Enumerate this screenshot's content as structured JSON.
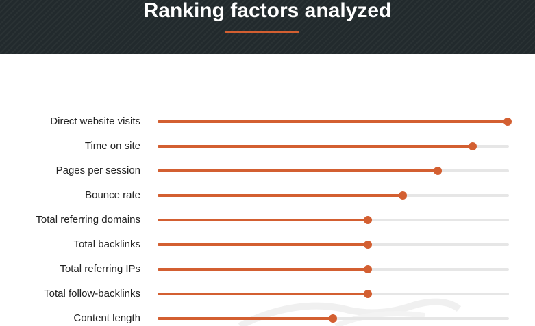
{
  "header": {
    "title": "Ranking factors analyzed"
  },
  "colors": {
    "header_bg": "#222a2d",
    "accent": "#d35f31",
    "track": "#e6e6e6",
    "text": "#222222"
  },
  "chart_data": {
    "type": "bar",
    "orientation": "horizontal",
    "title": "Ranking factors analyzed",
    "xlabel": "",
    "ylabel": "",
    "xlim": [
      0,
      1
    ],
    "grid": false,
    "categories": [
      "Direct website visits",
      "Time on site",
      "Pages per session",
      "Bounce rate",
      "Total referring domains",
      "Total backlinks",
      "Total referring IPs",
      "Total follow-backlinks",
      "Content length"
    ],
    "values": [
      1.0,
      0.9,
      0.8,
      0.7,
      0.6,
      0.6,
      0.6,
      0.6,
      0.5
    ]
  }
}
